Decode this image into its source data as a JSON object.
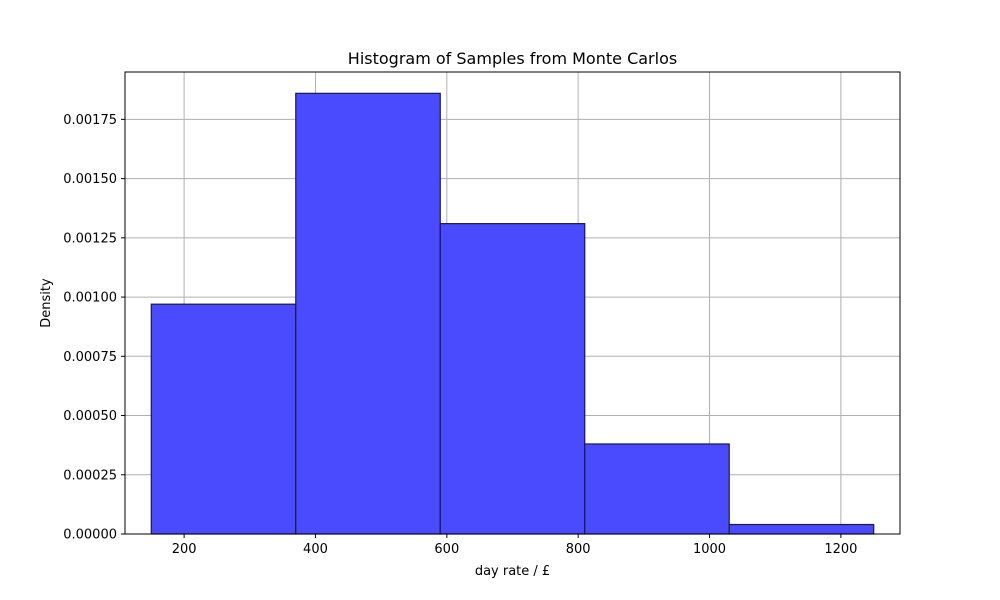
{
  "chart_data": {
    "type": "bar",
    "title": "Histogram of Samples from Monte Carlos",
    "xlabel": "day rate / £",
    "ylabel": "Density",
    "xlim": [
      110,
      1290
    ],
    "ylim": [
      0,
      0.00195
    ],
    "x_ticks": [
      200,
      400,
      600,
      800,
      1000,
      1200
    ],
    "x_tick_labels": [
      "200",
      "400",
      "600",
      "800",
      "1000",
      "1200"
    ],
    "y_ticks": [
      0,
      0.00025,
      0.0005,
      0.00075,
      0.001,
      0.00125,
      0.0015,
      0.00175
    ],
    "y_tick_labels": [
      "0.00000",
      "0.00025",
      "0.00050",
      "0.00075",
      "0.00100",
      "0.00125",
      "0.00150",
      "0.00175"
    ],
    "bins": [
      {
        "x0": 150,
        "x1": 370,
        "density": 0.00097
      },
      {
        "x0": 370,
        "x1": 590,
        "density": 0.00186
      },
      {
        "x0": 590,
        "x1": 810,
        "density": 0.00131
      },
      {
        "x0": 810,
        "x1": 1030,
        "density": 0.00038
      },
      {
        "x0": 1030,
        "x1": 1250,
        "density": 4e-05
      }
    ],
    "bar_color": "#4a4aff",
    "bar_edge_color": "#1a1a4a",
    "grid": true,
    "grid_color": "#b0b0b0"
  }
}
